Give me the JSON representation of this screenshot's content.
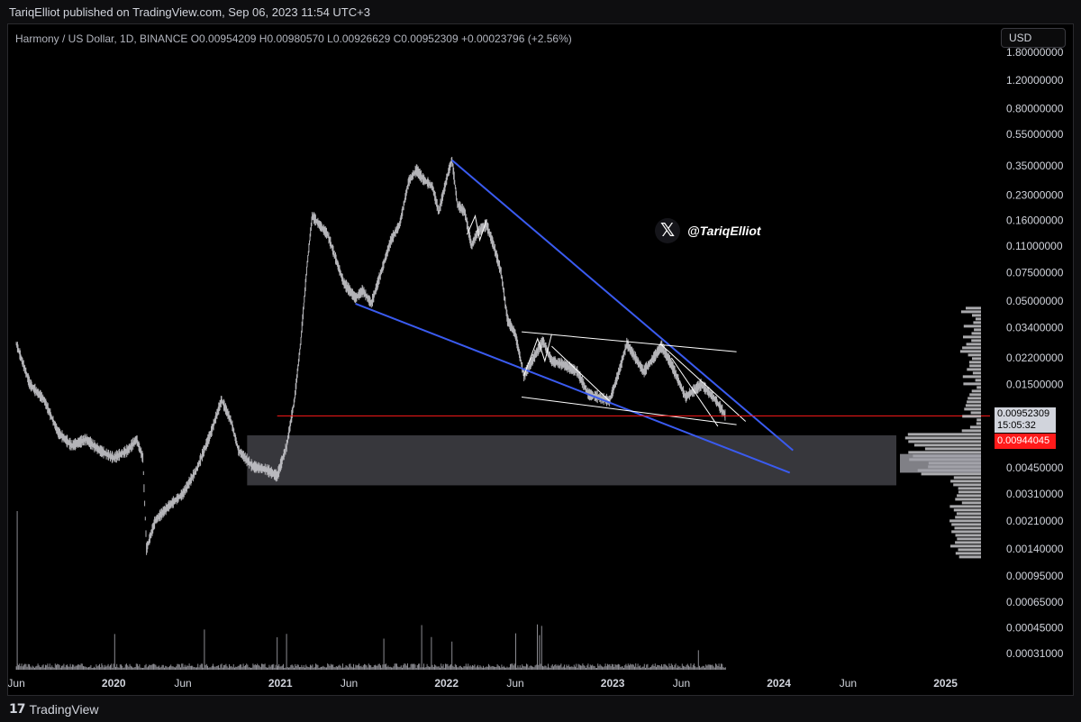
{
  "header": {
    "published": "TariqElliot published on TradingView.com, Sep 06, 2023 11:54 UTC+3"
  },
  "symbol_line": "Harmony / US Dollar, 1D, BINANCE  O0.00954209  H0.00980570  L0.00926629  C0.00952309  +0.00023796 (+2.56%)",
  "currency": "USD",
  "watermark": {
    "icon": "x-logo-icon",
    "handle": "@TariqElliot"
  },
  "price_labels": {
    "last": "0.00952309",
    "countdown": "15:05:32",
    "line": "0.00944045"
  },
  "footer": {
    "brand": "TradingView",
    "icon": "tradingview-logo-icon"
  },
  "colors": {
    "candle": "#c8c8cc",
    "trendline": "#3a5bf0",
    "channel": "#ffffff",
    "zone": "#4a4a50",
    "price_line": "#ff1a1a",
    "volume_profile": "#c8c8cc"
  },
  "chart_data": {
    "type": "line",
    "scale": "log",
    "ylim": [
      0.00024,
      1.9
    ],
    "x_tick_labels": [
      "Jun",
      "2020",
      "Jun",
      "2021",
      "Jun",
      "2022",
      "Jun",
      "2023",
      "Jun",
      "2024",
      "Jun",
      "2025"
    ],
    "x_tick_dates": [
      "2019-06-01",
      "2020-01-01",
      "2020-06-01",
      "2021-01-01",
      "2021-06-01",
      "2022-01-01",
      "2022-06-01",
      "2023-01-01",
      "2023-06-01",
      "2024-01-01",
      "2024-06-01",
      "2025-01-01"
    ],
    "y_tick_labels": [
      "1.80000000",
      "1.20000000",
      "0.80000000",
      "0.55000000",
      "0.35000000",
      "0.23000000",
      "0.16000000",
      "0.11000000",
      "0.07500000",
      "0.05000000",
      "0.03400000",
      "0.02200000",
      "0.01500000",
      "0.00450000",
      "0.00310000",
      "0.00210000",
      "0.00140000",
      "0.00095000",
      "0.00065000",
      "0.00045000",
      "0.00031000"
    ],
    "y_tick_values": [
      1.8,
      1.2,
      0.8,
      0.55,
      0.35,
      0.23,
      0.16,
      0.11,
      0.075,
      0.05,
      0.034,
      0.022,
      0.015,
      0.0045,
      0.0031,
      0.0021,
      0.0014,
      0.00095,
      0.00065,
      0.00045,
      0.00031
    ],
    "series": [
      {
        "points": [
          [
            "2019-06-01",
            0.027
          ],
          [
            "2019-07-01",
            0.015
          ],
          [
            "2019-08-01",
            0.012
          ],
          [
            "2019-09-01",
            0.0075
          ],
          [
            "2019-10-01",
            0.0062
          ],
          [
            "2019-11-01",
            0.0068
          ],
          [
            "2019-12-01",
            0.0058
          ],
          [
            "2020-01-01",
            0.0052
          ],
          [
            "2020-02-01",
            0.0058
          ],
          [
            "2020-02-20",
            0.0068
          ],
          [
            "2020-03-05",
            0.0052
          ],
          [
            "2020-03-13",
            0.0014
          ],
          [
            "2020-04-01",
            0.0021
          ],
          [
            "2020-05-01",
            0.0026
          ],
          [
            "2020-06-01",
            0.0031
          ],
          [
            "2020-07-01",
            0.0044
          ],
          [
            "2020-08-01",
            0.0074
          ],
          [
            "2020-08-25",
            0.012
          ],
          [
            "2020-09-15",
            0.0088
          ],
          [
            "2020-10-01",
            0.0058
          ],
          [
            "2020-11-01",
            0.0046
          ],
          [
            "2020-12-01",
            0.0044
          ],
          [
            "2020-12-25",
            0.004
          ],
          [
            "2021-01-15",
            0.0062
          ],
          [
            "2021-02-01",
            0.012
          ],
          [
            "2021-02-15",
            0.028
          ],
          [
            "2021-03-01",
            0.085
          ],
          [
            "2021-03-12",
            0.17
          ],
          [
            "2021-04-01",
            0.145
          ],
          [
            "2021-04-15",
            0.13
          ],
          [
            "2021-05-01",
            0.095
          ],
          [
            "2021-05-20",
            0.065
          ],
          [
            "2021-06-15",
            0.052
          ],
          [
            "2021-07-01",
            0.058
          ],
          [
            "2021-07-20",
            0.048
          ],
          [
            "2021-08-10",
            0.075
          ],
          [
            "2021-09-01",
            0.12
          ],
          [
            "2021-09-20",
            0.15
          ],
          [
            "2021-10-10",
            0.28
          ],
          [
            "2021-10-27",
            0.33
          ],
          [
            "2021-11-10",
            0.29
          ],
          [
            "2021-12-01",
            0.26
          ],
          [
            "2021-12-15",
            0.18
          ],
          [
            "2022-01-05",
            0.32
          ],
          [
            "2022-01-13",
            0.38
          ],
          [
            "2022-01-25",
            0.2
          ],
          [
            "2022-02-10",
            0.18
          ],
          [
            "2022-02-25",
            0.11
          ],
          [
            "2022-03-10",
            0.135
          ],
          [
            "2022-03-30",
            0.15
          ],
          [
            "2022-04-15",
            0.11
          ],
          [
            "2022-05-01",
            0.075
          ],
          [
            "2022-05-15",
            0.038
          ],
          [
            "2022-06-01",
            0.031
          ],
          [
            "2022-06-20",
            0.017
          ],
          [
            "2022-07-15",
            0.023
          ],
          [
            "2022-08-01",
            0.028
          ],
          [
            "2022-08-20",
            0.021
          ],
          [
            "2022-09-15",
            0.02
          ],
          [
            "2022-10-15",
            0.018
          ],
          [
            "2022-11-09",
            0.013
          ],
          [
            "2022-12-01",
            0.0125
          ],
          [
            "2022-12-25",
            0.0118
          ],
          [
            "2023-01-15",
            0.018
          ],
          [
            "2023-02-01",
            0.027
          ],
          [
            "2023-02-20",
            0.022
          ],
          [
            "2023-03-10",
            0.018
          ],
          [
            "2023-04-01",
            0.022
          ],
          [
            "2023-04-18",
            0.026
          ],
          [
            "2023-05-10",
            0.02
          ],
          [
            "2023-06-10",
            0.0125
          ],
          [
            "2023-07-15",
            0.015
          ],
          [
            "2023-08-15",
            0.012
          ],
          [
            "2023-09-06",
            0.00952309
          ]
        ]
      }
    ]
  }
}
